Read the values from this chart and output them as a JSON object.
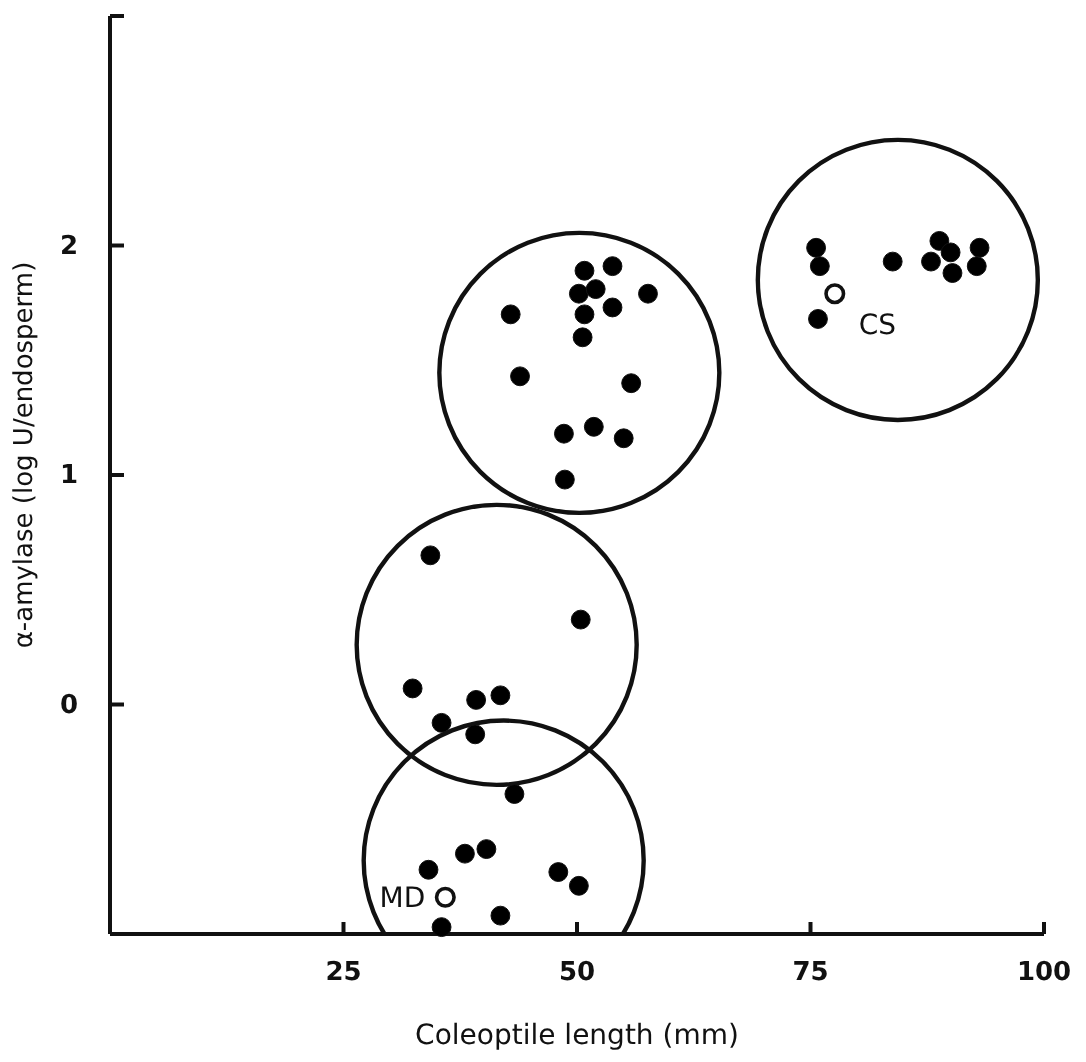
{
  "chart_data": {
    "type": "scatter",
    "xlabel": "Coleoptile length (mm)",
    "ylabel": "α-amylase (log U/endosperm)",
    "xlim": [
      0,
      100
    ],
    "ylim": [
      -1,
      3
    ],
    "xticks": [
      25,
      50,
      75,
      100
    ],
    "yticks": [
      0,
      1,
      2,
      {
        "value": 3,
        "label": null
      }
    ],
    "marker": "circle",
    "grid": false,
    "legend": false,
    "series": [
      {
        "color": "#000000",
        "x": [
          50.8,
          53.8,
          50.2,
          52.0,
          57.6,
          42.9,
          50.8,
          53.8,
          50.6,
          43.9,
          55.8,
          48.6,
          51.8,
          55.0,
          48.7
        ],
        "values": [
          1.89,
          1.91,
          1.79,
          1.81,
          1.79,
          1.7,
          1.7,
          1.73,
          1.6,
          1.43,
          1.4,
          1.18,
          1.21,
          1.16,
          0.98
        ]
      },
      {
        "color": "#000000",
        "x": [
          75.6,
          76.0,
          83.8,
          88.8,
          87.9,
          90.0,
          90.2,
          93.1,
          92.8,
          75.8
        ],
        "values": [
          1.99,
          1.91,
          1.93,
          2.02,
          1.93,
          1.97,
          1.88,
          1.99,
          1.91,
          1.68
        ]
      },
      {
        "color": "#000000",
        "x": [
          34.3,
          50.4,
          32.4,
          39.2,
          41.8,
          35.5,
          39.1
        ],
        "values": [
          0.65,
          0.37,
          0.07,
          0.02,
          0.04,
          -0.08,
          -0.13
        ]
      },
      {
        "color": "#000000",
        "x": [
          43.3,
          38.0,
          40.3,
          34.1,
          48.0,
          50.2,
          41.8,
          35.5
        ],
        "values": [
          -0.39,
          -0.65,
          -0.63,
          -0.72,
          -0.73,
          -0.79,
          -0.92,
          -0.97
        ]
      },
      {
        "name": "CS",
        "color": "#ffffff",
        "x": [
          77.6
        ],
        "values": [
          1.79
        ]
      },
      {
        "name": "MD",
        "color": "#ffffff",
        "x": [
          35.9
        ],
        "values": [
          -0.84
        ]
      }
    ]
  }
}
